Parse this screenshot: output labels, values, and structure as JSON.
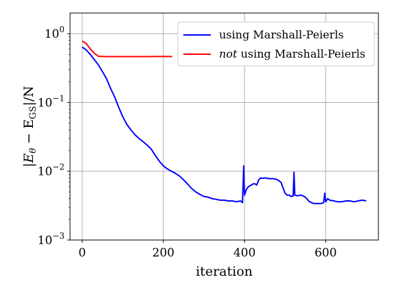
{
  "chart_data": {
    "type": "line",
    "xlabel": "iteration",
    "ylabel": "|E_θ − E_GS|/N",
    "ylabel_parts": {
      "pre": "|E",
      "sub1": "θ",
      "mid": " − E",
      "sub2": "GS",
      "post": "|/N"
    },
    "xlim": [
      -30,
      730
    ],
    "ylim": [
      0.001,
      2
    ],
    "yscale": "log",
    "grid": true,
    "x_ticks": [
      0,
      200,
      400,
      600
    ],
    "x_tick_labels": [
      "0",
      "200",
      "400",
      "600"
    ],
    "y_ticks": [
      1,
      0.1,
      0.01,
      0.001
    ],
    "y_tick_labels": [
      {
        "base": "10",
        "exp": "0"
      },
      {
        "base": "10",
        "exp": "−1"
      },
      {
        "base": "10",
        "exp": "−2"
      },
      {
        "base": "10",
        "exp": "−3"
      }
    ],
    "legend_position": "top-right",
    "series": [
      {
        "name": "using Marshall-Peierls",
        "name_parts": {
          "italic": "",
          "rest": "using Marshall-Peierls"
        },
        "color": "#0000ff",
        "points": [
          [
            0,
            0.64
          ],
          [
            10,
            0.58
          ],
          [
            20,
            0.5
          ],
          [
            30,
            0.42
          ],
          [
            40,
            0.35
          ],
          [
            50,
            0.28
          ],
          [
            60,
            0.22
          ],
          [
            70,
            0.16
          ],
          [
            80,
            0.12
          ],
          [
            90,
            0.085
          ],
          [
            100,
            0.062
          ],
          [
            110,
            0.048
          ],
          [
            120,
            0.04
          ],
          [
            130,
            0.034
          ],
          [
            140,
            0.03
          ],
          [
            150,
            0.027
          ],
          [
            160,
            0.024
          ],
          [
            170,
            0.021
          ],
          [
            180,
            0.017
          ],
          [
            190,
            0.014
          ],
          [
            200,
            0.012
          ],
          [
            210,
            0.0108
          ],
          [
            220,
            0.01
          ],
          [
            230,
            0.0093
          ],
          [
            240,
            0.0085
          ],
          [
            250,
            0.0075
          ],
          [
            260,
            0.0065
          ],
          [
            270,
            0.0056
          ],
          [
            280,
            0.005
          ],
          [
            290,
            0.0046
          ],
          [
            300,
            0.0043
          ],
          [
            310,
            0.0042
          ],
          [
            320,
            0.004
          ],
          [
            330,
            0.0039
          ],
          [
            340,
            0.0038
          ],
          [
            350,
            0.0038
          ],
          [
            360,
            0.0037
          ],
          [
            370,
            0.0037
          ],
          [
            380,
            0.0036
          ],
          [
            390,
            0.0037
          ],
          [
            395,
            0.0035
          ],
          [
            398,
            0.012
          ],
          [
            400,
            0.0045
          ],
          [
            405,
            0.0055
          ],
          [
            410,
            0.006
          ],
          [
            415,
            0.0062
          ],
          [
            420,
            0.0065
          ],
          [
            425,
            0.0066
          ],
          [
            430,
            0.0063
          ],
          [
            435,
            0.0075
          ],
          [
            440,
            0.008
          ],
          [
            445,
            0.0079
          ],
          [
            450,
            0.008
          ],
          [
            460,
            0.0078
          ],
          [
            470,
            0.0078
          ],
          [
            480,
            0.0076
          ],
          [
            490,
            0.0069
          ],
          [
            495,
            0.0057
          ],
          [
            500,
            0.0048
          ],
          [
            505,
            0.0045
          ],
          [
            510,
            0.0045
          ],
          [
            515,
            0.0043
          ],
          [
            520,
            0.0044
          ],
          [
            522,
            0.0097
          ],
          [
            524,
            0.0045
          ],
          [
            530,
            0.0044
          ],
          [
            540,
            0.0045
          ],
          [
            550,
            0.0042
          ],
          [
            560,
            0.0036
          ],
          [
            570,
            0.0034
          ],
          [
            580,
            0.0034
          ],
          [
            590,
            0.0034
          ],
          [
            595,
            0.0035
          ],
          [
            598,
            0.0048
          ],
          [
            600,
            0.0036
          ],
          [
            605,
            0.004
          ],
          [
            610,
            0.0038
          ],
          [
            620,
            0.0037
          ],
          [
            630,
            0.0036
          ],
          [
            640,
            0.0036
          ],
          [
            650,
            0.0037
          ],
          [
            660,
            0.0037
          ],
          [
            670,
            0.0036
          ],
          [
            680,
            0.0037
          ],
          [
            690,
            0.0038
          ],
          [
            700,
            0.0037
          ]
        ]
      },
      {
        "name": "not using Marshall-Peierls",
        "name_parts": {
          "italic": "not",
          "rest": " using Marshall-Peierls"
        },
        "color": "#ff0000",
        "points": [
          [
            0,
            0.78
          ],
          [
            10,
            0.72
          ],
          [
            20,
            0.6
          ],
          [
            30,
            0.52
          ],
          [
            40,
            0.47
          ],
          [
            60,
            0.465
          ],
          [
            80,
            0.465
          ],
          [
            100,
            0.465
          ],
          [
            120,
            0.465
          ],
          [
            140,
            0.465
          ],
          [
            160,
            0.465
          ],
          [
            180,
            0.466
          ],
          [
            200,
            0.466
          ],
          [
            222,
            0.466
          ]
        ]
      }
    ]
  }
}
